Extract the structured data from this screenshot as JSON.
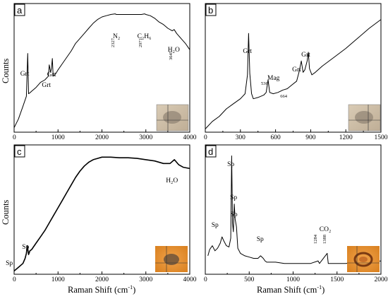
{
  "figure": {
    "y_axis_label": "Counts",
    "x_axis_label": "Raman Shift (cm",
    "x_axis_label_sup": "-1",
    "x_axis_label_end": ")"
  },
  "chart_data": [
    {
      "type": "line",
      "panel": "a",
      "xlim": [
        0,
        4000
      ],
      "xticks": [
        0,
        1000,
        2000,
        3000,
        4000
      ],
      "annotations": [
        {
          "text": "Grt",
          "x": 300
        },
        {
          "text": "Grt",
          "x": 810
        },
        {
          "text": "Grt",
          "x": 880
        },
        {
          "text": "N₂",
          "x": 2330
        },
        {
          "text": "2327",
          "x": 2330
        },
        {
          "text": "C₂H₆",
          "x": 2950
        },
        {
          "text": "2971",
          "x": 2971
        },
        {
          "text": "H₂O",
          "x": 3660
        },
        {
          "text": "3645",
          "x": 3645
        }
      ],
      "series": [
        {
          "x": [
            0,
            100,
            200,
            280,
            310,
            330,
            370,
            400,
            500,
            600,
            700,
            780,
            800,
            830,
            850,
            870,
            885,
            900,
            950,
            1000,
            1100,
            1200,
            1300,
            1400,
            1500,
            1600,
            1700,
            1800,
            1900,
            2000,
            2100,
            2200,
            2300,
            2327,
            2400,
            2500,
            2600,
            2700,
            2800,
            2900,
            2971,
            3000,
            3100,
            3200,
            3300,
            3400,
            3500,
            3600,
            3645,
            3700,
            3800,
            3900,
            4000
          ],
          "y": [
            0.03,
            0.1,
            0.2,
            0.28,
            0.62,
            0.3,
            0.31,
            0.32,
            0.35,
            0.39,
            0.41,
            0.44,
            0.53,
            0.47,
            0.5,
            0.58,
            0.47,
            0.44,
            0.46,
            0.49,
            0.54,
            0.59,
            0.64,
            0.7,
            0.74,
            0.78,
            0.82,
            0.86,
            0.89,
            0.91,
            0.92,
            0.93,
            0.935,
            0.93,
            0.93,
            0.93,
            0.93,
            0.93,
            0.93,
            0.93,
            0.935,
            0.93,
            0.92,
            0.9,
            0.87,
            0.85,
            0.82,
            0.8,
            0.81,
            0.78,
            0.74,
            0.7,
            0.65
          ]
        }
      ]
    },
    {
      "type": "line",
      "panel": "b",
      "xlim": [
        0,
        1500
      ],
      "xticks": [
        0,
        300,
        600,
        900,
        1200,
        1500
      ],
      "annotations": [
        {
          "text": "Grt",
          "x": 370
        },
        {
          "text": "Mag",
          "x": 560
        },
        {
          "text": "536",
          "x": 536
        },
        {
          "text": "664",
          "x": 664
        },
        {
          "text": "Grt",
          "x": 820
        },
        {
          "text": "Grt",
          "x": 880
        }
      ],
      "series": [
        {
          "x": [
            0,
            60,
            120,
            180,
            240,
            300,
            340,
            360,
            370,
            380,
            395,
            410,
            450,
            500,
            520,
            536,
            550,
            580,
            620,
            664,
            700,
            740,
            780,
            800,
            820,
            835,
            850,
            870,
            880,
            890,
            910,
            940,
            1000,
            1100,
            1200,
            1300,
            1400,
            1500
          ],
          "y": [
            0.02,
            0.08,
            0.12,
            0.18,
            0.22,
            0.26,
            0.3,
            0.45,
            0.78,
            0.46,
            0.3,
            0.26,
            0.27,
            0.29,
            0.31,
            0.41,
            0.31,
            0.3,
            0.31,
            0.33,
            0.34,
            0.37,
            0.4,
            0.47,
            0.56,
            0.47,
            0.49,
            0.56,
            0.63,
            0.5,
            0.45,
            0.47,
            0.52,
            0.59,
            0.66,
            0.74,
            0.82,
            0.89
          ]
        }
      ]
    },
    {
      "type": "line",
      "panel": "c",
      "xlim": [
        0,
        4000
      ],
      "xticks": [
        0,
        1000,
        2000,
        3000,
        4000
      ],
      "annotations": [
        {
          "text": "Sp",
          "x": 130
        },
        {
          "text": "Sp",
          "x": 310
        },
        {
          "text": "H₂O",
          "x": 3650
        }
      ],
      "series": [
        {
          "x": [
            0,
            100,
            200,
            250,
            280,
            300,
            330,
            360,
            400,
            500,
            600,
            700,
            800,
            900,
            1000,
            1100,
            1200,
            1300,
            1400,
            1500,
            1600,
            1700,
            1800,
            1900,
            2000,
            2200,
            2400,
            2600,
            2800,
            3000,
            3200,
            3400,
            3550,
            3650,
            3750,
            3850,
            4000
          ],
          "y": [
            0.02,
            0.05,
            0.08,
            0.12,
            0.16,
            0.22,
            0.15,
            0.18,
            0.19,
            0.24,
            0.29,
            0.34,
            0.4,
            0.46,
            0.52,
            0.58,
            0.64,
            0.7,
            0.76,
            0.81,
            0.85,
            0.88,
            0.9,
            0.91,
            0.92,
            0.92,
            0.915,
            0.915,
            0.91,
            0.9,
            0.89,
            0.87,
            0.87,
            0.9,
            0.86,
            0.84,
            0.83
          ]
        }
      ]
    },
    {
      "type": "line",
      "panel": "d",
      "xlim": [
        0,
        2000
      ],
      "xticks": [
        0,
        500,
        1000,
        1500,
        2000
      ],
      "annotations": [
        {
          "text": "Sp",
          "x": 150
        },
        {
          "text": "Sp",
          "x": 290
        },
        {
          "text": "Sp",
          "x": 330
        },
        {
          "text": "Sp",
          "x": 350
        },
        {
          "text": "Sp",
          "x": 640
        },
        {
          "text": "1284",
          "x": 1284
        },
        {
          "text": "1388",
          "x": 1388
        },
        {
          "text": "CO₂",
          "x": 1380
        }
      ],
      "series": [
        {
          "x": [
            30,
            50,
            80,
            110,
            140,
            170,
            190,
            210,
            240,
            270,
            290,
            300,
            310,
            320,
            330,
            340,
            355,
            370,
            400,
            450,
            500,
            550,
            600,
            630,
            660,
            680,
            700,
            750,
            800,
            900,
            1000,
            1100,
            1200,
            1284,
            1300,
            1388,
            1400,
            1500,
            1600,
            1700,
            1800,
            1900,
            2000
          ],
          "y": [
            0.14,
            0.19,
            0.22,
            0.18,
            0.2,
            0.24,
            0.29,
            0.26,
            0.22,
            0.21,
            0.28,
            0.93,
            0.4,
            0.33,
            0.55,
            0.43,
            0.37,
            0.2,
            0.16,
            0.14,
            0.13,
            0.12,
            0.12,
            0.14,
            0.12,
            0.1,
            0.09,
            0.09,
            0.09,
            0.08,
            0.08,
            0.08,
            0.08,
            0.1,
            0.08,
            0.16,
            0.08,
            0.08,
            0.08,
            0.09,
            0.09,
            0.09,
            0.1
          ]
        }
      ]
    }
  ]
}
